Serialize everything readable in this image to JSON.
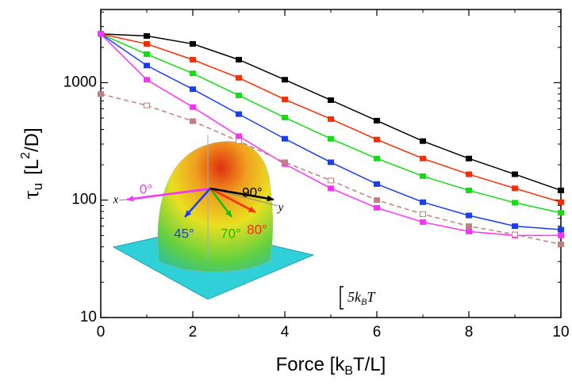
{
  "chart_data": {
    "type": "line",
    "xlabel": {
      "text": "Force [k",
      "sub": "B",
      "tail": "T/L]"
    },
    "ylabel": {
      "symbol": "τ",
      "sub": "u",
      "text": "[L",
      "sup": "2",
      "tail": "/D]"
    },
    "x": [
      0,
      1,
      2,
      3,
      4,
      5,
      6,
      7,
      8,
      9,
      10
    ],
    "series": [
      {
        "color": "#000000",
        "values": [
          2600,
          2500,
          2140,
          1570,
          1060,
          710,
          475,
          318,
          226,
          166,
          121
        ]
      },
      {
        "color": "#ff2a00",
        "values": [
          2600,
          2140,
          1570,
          1100,
          720,
          490,
          328,
          226,
          166,
          126,
          96
        ]
      },
      {
        "color": "#10e010",
        "values": [
          2600,
          1750,
          1200,
          780,
          505,
          333,
          226,
          160,
          121,
          95,
          78
        ]
      },
      {
        "color": "#1a3cff",
        "values": [
          2600,
          1400,
          880,
          540,
          333,
          210,
          137,
          96,
          74,
          60,
          56
        ]
      },
      {
        "color": "#ff30ff",
        "values": [
          2600,
          1060,
          620,
          350,
          203,
          126,
          86,
          65,
          54,
          50,
          50
        ]
      },
      {
        "color": "#c08080",
        "dashed": true,
        "values": [
          800,
          640,
          470,
          318,
          210,
          147,
          100,
          76,
          60,
          51,
          42
        ]
      }
    ],
    "xlim": [
      0,
      10
    ],
    "ylim": [
      10,
      4200
    ],
    "xticks": [
      0,
      2,
      4,
      6,
      8,
      10
    ],
    "yticks": [
      10,
      100,
      1000
    ],
    "log_y": true,
    "inset": {
      "axes": [
        "x",
        "y"
      ],
      "angles": [
        {
          "text": "0°",
          "color": "#ff30ff"
        },
        {
          "text": "45°",
          "color": "#1a3cff"
        },
        {
          "text": "70°",
          "color": "#10c010"
        },
        {
          "text": "80°",
          "color": "#ff2a00"
        },
        {
          "text": "90°",
          "color": "#000000"
        }
      ]
    },
    "scale_bar": {
      "text": "5k",
      "sub": "B",
      "tail": "T"
    }
  }
}
